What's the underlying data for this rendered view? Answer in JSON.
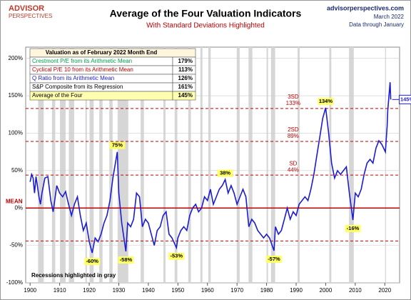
{
  "chart_data": {
    "type": "line",
    "logo": "ADVISOR",
    "logo_sub": "PERSPECTIVES",
    "title": "Average of the Four Valuation Indicators",
    "subtitle": "With Standard Deviations Highlighted",
    "source": "advisorperspectives.com",
    "date": "March 2022",
    "data_note": "Data through January",
    "recession_note": "Recessions highlighted in gray",
    "mean_label": "MEAN",
    "xlim": [
      1898.5,
      2025
    ],
    "ylim": [
      -100,
      215
    ],
    "xticks": [
      1900,
      1910,
      1920,
      1930,
      1940,
      1950,
      1960,
      1970,
      1980,
      1990,
      2000,
      2010,
      2020
    ],
    "yticks": [
      {
        "value": -100,
        "label": "-100%"
      },
      {
        "value": -50,
        "label": "-50%"
      },
      {
        "value": 0,
        "label": "0%"
      },
      {
        "value": 50,
        "label": "50%"
      },
      {
        "value": 100,
        "label": "100%"
      },
      {
        "value": 150,
        "label": "150%"
      },
      {
        "value": 200,
        "label": "200%"
      }
    ],
    "grid": true,
    "recessions": [
      [
        1902.7,
        1904.6
      ],
      [
        1907.4,
        1908.5
      ],
      [
        1910.1,
        1912
      ],
      [
        1913.1,
        1914.9
      ],
      [
        1918.7,
        1919.2
      ],
      [
        1920.1,
        1921.5
      ],
      [
        1923.4,
        1924.5
      ],
      [
        1926.8,
        1927.9
      ],
      [
        1929.6,
        1933.2
      ],
      [
        1937.4,
        1938.5
      ],
      [
        1945.1,
        1945.8
      ],
      [
        1948.9,
        1949.8
      ],
      [
        1953.5,
        1954.4
      ],
      [
        1957.6,
        1958.3
      ],
      [
        1960.3,
        1961.1
      ],
      [
        1969.9,
        1970.9
      ],
      [
        1973.9,
        1975.2
      ],
      [
        1980,
        1980.5
      ],
      [
        1981.5,
        1982.9
      ],
      [
        1990.5,
        1991.2
      ],
      [
        2001.2,
        2001.9
      ],
      [
        2007.9,
        2009.5
      ],
      [
        2020.1,
        2020.4
      ]
    ],
    "reference_lines": [
      {
        "value": 133,
        "label": "3SD",
        "value_label": "133%"
      },
      {
        "value": 89,
        "label": "2SD",
        "value_label": "89%"
      },
      {
        "value": 44,
        "label": "SD",
        "value_label": "44%"
      },
      {
        "value": -44
      }
    ],
    "series": [
      {
        "name": "Average of the Four",
        "color": "#1c1cd0",
        "x": [
          1900,
          1900.5,
          1901,
          1901.5,
          1902,
          1903,
          1903.5,
          1904,
          1905,
          1906,
          1907,
          1907.8,
          1908.5,
          1909,
          1910,
          1911,
          1912,
          1913,
          1914,
          1915,
          1916,
          1917,
          1918,
          1919,
          1920,
          1921,
          1922,
          1923,
          1924,
          1925,
          1926,
          1927,
          1928,
          1929.5,
          1930,
          1931,
          1932.4,
          1933,
          1934,
          1935,
          1936,
          1937,
          1938,
          1939,
          1940,
          1941,
          1942,
          1943,
          1944,
          1945,
          1946,
          1947,
          1948,
          1949.5,
          1950,
          1951,
          1952,
          1953,
          1954,
          1955,
          1956,
          1957,
          1958,
          1959,
          1960,
          1961,
          1962,
          1963,
          1964,
          1965,
          1966,
          1967,
          1968,
          1969,
          1970,
          1971,
          1972,
          1973,
          1974,
          1975,
          1976,
          1977,
          1978,
          1979,
          1980,
          1981,
          1982.5,
          1983,
          1984,
          1985,
          1986,
          1987,
          1988,
          1989,
          1990,
          1991,
          1992,
          1993,
          1994,
          1995,
          1996,
          1997,
          1998,
          1999,
          2000,
          2001,
          2002,
          2003,
          2004,
          2005,
          2006,
          2007,
          2008,
          2009.2,
          2010,
          2011,
          2012,
          2013,
          2014,
          2015,
          2016,
          2017,
          2018,
          2019,
          2020.2,
          2020.8,
          2021,
          2021.8,
          2022
        ],
        "values": [
          35,
          45,
          40,
          20,
          42,
          15,
          5,
          20,
          40,
          42,
          10,
          -5,
          15,
          30,
          20,
          15,
          22,
          5,
          -10,
          5,
          15,
          -10,
          -30,
          -20,
          -45,
          -60,
          -40,
          -45,
          -35,
          -20,
          -10,
          10,
          40,
          75,
          20,
          -20,
          -58,
          -20,
          -25,
          -15,
          20,
          15,
          -25,
          -15,
          -20,
          -35,
          -50,
          -30,
          -25,
          -10,
          -5,
          -35,
          -40,
          -53,
          -40,
          -30,
          -25,
          -30,
          -10,
          0,
          5,
          -5,
          0,
          15,
          10,
          25,
          5,
          15,
          25,
          30,
          38,
          20,
          30,
          20,
          5,
          15,
          25,
          15,
          -25,
          -15,
          -20,
          -30,
          -35,
          -40,
          -35,
          -40,
          -57,
          -25,
          -35,
          -30,
          -15,
          0,
          -15,
          -5,
          -10,
          5,
          10,
          15,
          10,
          25,
          45,
          70,
          95,
          120,
          134,
          100,
          60,
          40,
          50,
          45,
          50,
          55,
          20,
          -16,
          20,
          15,
          25,
          45,
          60,
          65,
          60,
          80,
          90,
          85,
          75,
          110,
          130,
          168,
          145
        ]
      }
    ],
    "annotations": [
      {
        "x": 1921,
        "y": -60,
        "label": "-60%"
      },
      {
        "x": 1929.5,
        "y": 75,
        "label": "75%"
      },
      {
        "x": 1932.4,
        "y": -58,
        "label": "-58%"
      },
      {
        "x": 1949.5,
        "y": -53,
        "label": "-53%"
      },
      {
        "x": 1966,
        "y": 38,
        "label": "38%"
      },
      {
        "x": 1982.5,
        "y": -57,
        "label": "-57%"
      },
      {
        "x": 2000,
        "y": 134,
        "label": "134%"
      },
      {
        "x": 2009.2,
        "y": -16,
        "label": "-16%"
      }
    ],
    "current": {
      "x": 2022,
      "y": 145,
      "label": "145%"
    },
    "table": {
      "title": "Valuation as of February 2022 Month End",
      "rows": [
        "Crestmont P/E from its Arithmetic Mean",
        "Cyclical P/E 10 from its Arithmetic Mean",
        "Q Ratio from its Arithmetic Mean",
        "S&P Composite from its Regression",
        "Average of the Four"
      ],
      "colors": [
        "#00a050",
        "#c00000",
        "#1c1cd0",
        "#000000",
        "#000000"
      ],
      "values": [
        179,
        113,
        126,
        161,
        145
      ],
      "value_labels": [
        "179%",
        "113%",
        "126%",
        "161%",
        "145%"
      ]
    }
  }
}
